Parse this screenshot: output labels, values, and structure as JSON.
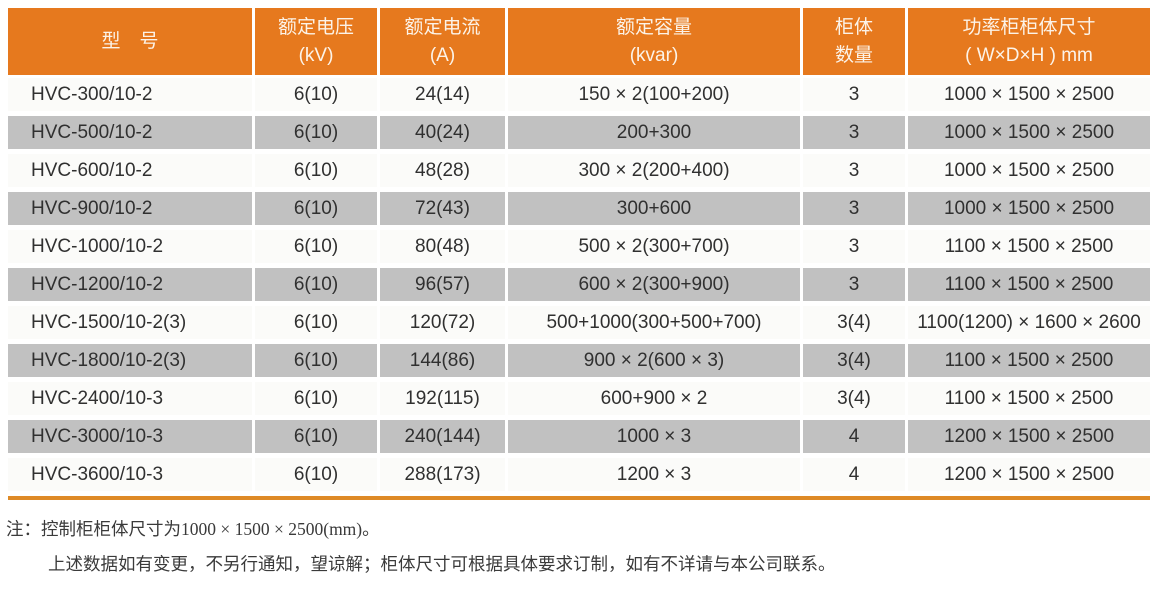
{
  "table": {
    "columns": [
      {
        "line1": "型　号",
        "line2": ""
      },
      {
        "line1": "额定电压",
        "line2": "(kV)"
      },
      {
        "line1": "额定电流",
        "line2": "(A)"
      },
      {
        "line1": "额定容量",
        "line2": "(kvar)"
      },
      {
        "line1": "柜体",
        "line2": "数量"
      },
      {
        "line1": "功率柜柜体尺寸",
        "line2": "( W×D×H ) mm"
      }
    ],
    "rows": [
      {
        "model": "HVC-300/10-2",
        "voltage": "6(10)",
        "current": "24(14)",
        "capacity": "150 × 2(100+200)",
        "cabinets": "3",
        "size": "1000 × 1500 × 2500"
      },
      {
        "model": "HVC-500/10-2",
        "voltage": "6(10)",
        "current": "40(24)",
        "capacity": "200+300",
        "cabinets": "3",
        "size": "1000 × 1500 × 2500"
      },
      {
        "model": "HVC-600/10-2",
        "voltage": "6(10)",
        "current": "48(28)",
        "capacity": "300 × 2(200+400)",
        "cabinets": "3",
        "size": "1000 × 1500 × 2500"
      },
      {
        "model": "HVC-900/10-2",
        "voltage": "6(10)",
        "current": "72(43)",
        "capacity": "300+600",
        "cabinets": "3",
        "size": "1000 × 1500 × 2500"
      },
      {
        "model": "HVC-1000/10-2",
        "voltage": "6(10)",
        "current": "80(48)",
        "capacity": "500 × 2(300+700)",
        "cabinets": "3",
        "size": "1100 × 1500 × 2500"
      },
      {
        "model": "HVC-1200/10-2",
        "voltage": "6(10)",
        "current": "96(57)",
        "capacity": "600 × 2(300+900)",
        "cabinets": "3",
        "size": "1100 × 1500 × 2500"
      },
      {
        "model": "HVC-1500/10-2(3)",
        "voltage": "6(10)",
        "current": "120(72)",
        "capacity": "500+1000(300+500+700)",
        "cabinets": "3(4)",
        "size": "1100(1200) × 1600 × 2600"
      },
      {
        "model": "HVC-1800/10-2(3)",
        "voltage": "6(10)",
        "current": "144(86)",
        "capacity": "900 × 2(600 × 3)",
        "cabinets": "3(4)",
        "size": "1100 × 1500 × 2500"
      },
      {
        "model": "HVC-2400/10-3",
        "voltage": "6(10)",
        "current": "192(115)",
        "capacity": "600+900 × 2",
        "cabinets": "3(4)",
        "size": "1100 × 1500 × 2500"
      },
      {
        "model": "HVC-3000/10-3",
        "voltage": "6(10)",
        "current": "240(144)",
        "capacity": "1000 × 3",
        "cabinets": "4",
        "size": "1200 × 1500 × 2500"
      },
      {
        "model": "HVC-3600/10-3",
        "voltage": "6(10)",
        "current": "288(173)",
        "capacity": "1200 × 3",
        "cabinets": "4",
        "size": "1200 × 1500 × 2500"
      }
    ]
  },
  "notes": {
    "label": "注：",
    "line1": "控制柜柜体尺寸为1000 × 1500 × 2500(mm)。",
    "line2": "上述数据如有变更，不另行通知，望谅解；柜体尺寸可根据具体要求订制，如有不详请与本公司联系。"
  },
  "colors": {
    "header_orange": "#E6791E",
    "row_gray": "#C1C1C1",
    "row_white": "#FBFBF9",
    "accent_bar_orange": "#DE8A26",
    "body_text": "#303030",
    "header_text": "#FCF3E8",
    "note_text": "#3A3A3A"
  }
}
